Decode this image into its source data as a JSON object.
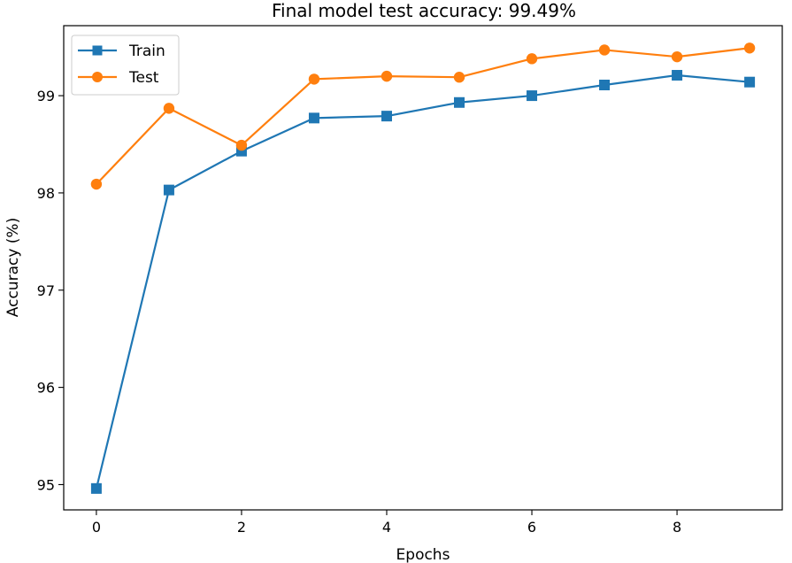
{
  "chart_data": {
    "type": "line",
    "title": "Final model test accuracy: 99.49%",
    "xlabel": "Epochs",
    "ylabel": "Accuracy (%)",
    "x": [
      0,
      1,
      2,
      3,
      4,
      5,
      6,
      7,
      8,
      9
    ],
    "xlim": [
      -0.45,
      9.45
    ],
    "ylim": [
      94.74,
      99.72
    ],
    "xticks": [
      0,
      2,
      4,
      6,
      8
    ],
    "yticks": [
      95,
      96,
      97,
      98,
      99
    ],
    "grid": false,
    "legend_position": "top-left",
    "series": [
      {
        "name": "Train",
        "color": "#1f77b4",
        "marker": "square",
        "values": [
          94.96,
          98.03,
          98.43,
          98.77,
          98.79,
          98.93,
          99.0,
          99.11,
          99.21,
          99.14
        ]
      },
      {
        "name": "Test",
        "color": "#ff7f0e",
        "marker": "circle",
        "values": [
          98.09,
          98.87,
          98.49,
          99.17,
          99.2,
          99.19,
          99.38,
          99.47,
          99.4,
          99.49
        ]
      }
    ]
  }
}
